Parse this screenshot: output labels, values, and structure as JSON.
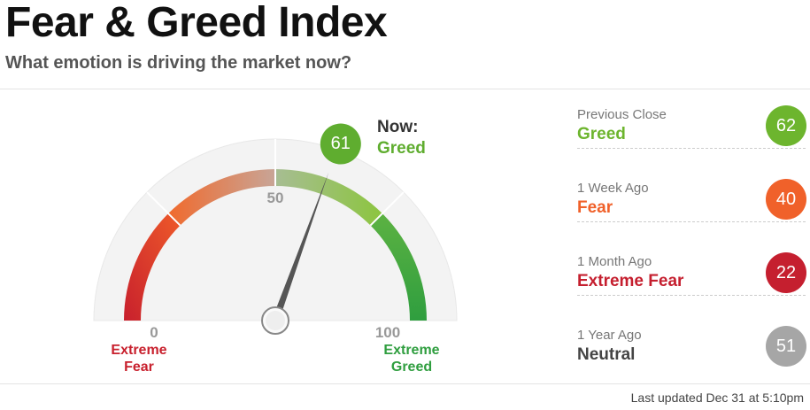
{
  "chart_data": {
    "type": "gauge",
    "title": "Fear & Greed Index",
    "subtitle": "What emotion is driving the market now?",
    "value": 61,
    "now_label": "Now:",
    "rating": "Greed",
    "rating_color": "#5fad2f",
    "lim": [
      0,
      100
    ],
    "ticks": [
      0,
      50,
      100
    ],
    "zones": [
      {
        "label": "Extreme Fear",
        "color": "#c8202d"
      },
      {
        "label": "Extreme Greed",
        "color": "#2f9e3f"
      }
    ],
    "history": [
      {
        "label": "Previous Close",
        "rating": "Greed",
        "value": 62,
        "color": "#6db52e"
      },
      {
        "label": "1 Week Ago",
        "rating": "Fear",
        "value": 40,
        "color": "#f0612a"
      },
      {
        "label": "1 Month Ago",
        "rating": "Extreme Fear",
        "value": 22,
        "color": "#c51f2f"
      },
      {
        "label": "1 Year Ago",
        "rating": "Neutral",
        "value": 51,
        "color": "#a6a6a6"
      }
    ],
    "footer": "Last updated Dec 31 at 5:10pm"
  }
}
